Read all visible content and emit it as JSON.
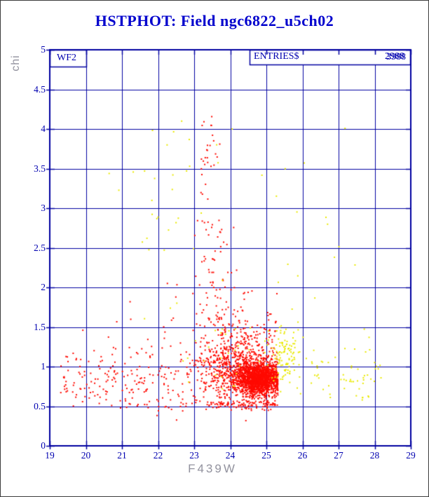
{
  "plot": {
    "wf_label": "WF2",
    "entries_label": "ENTRIES$",
    "entries_values": [
      "2988",
      "3988"
    ]
  },
  "chart_data": {
    "type": "scatter",
    "title": "HSTPHOT: Field ngc6822_u5ch02",
    "xlabel": "F439W",
    "ylabel": "chi",
    "xlim": [
      19,
      29
    ],
    "ylim": [
      0,
      5
    ],
    "x_ticks": [
      19,
      20,
      21,
      22,
      23,
      24,
      25,
      26,
      27,
      28,
      29
    ],
    "y_ticks": [
      0,
      0.5,
      1,
      1.5,
      2,
      2.5,
      3,
      3.5,
      4,
      4.5,
      5
    ],
    "grid": true,
    "legend": "none",
    "marker": "dot-2px",
    "colors": {
      "grid": "#0000a0",
      "axis": "#0000a0",
      "tick_text": "#0000b0",
      "title": "#0000cd",
      "axis_label_text": "#92929e",
      "background": "#ffffff",
      "red_series": "#ff0a00",
      "yellow_series": "#e9e900"
    },
    "series": [
      {
        "name": "red-points",
        "color": "#ff0a00",
        "clusters": [
          {
            "n": 1500,
            "x": {
              "dist": "normal",
              "mu": 24.78,
              "sd": 0.3,
              "fold_max": 25.32
            },
            "y": {
              "dist": "normal",
              "mu": 0.84,
              "sd": 0.1
            }
          },
          {
            "n": 650,
            "x": {
              "dist": "normal",
              "mu": 24.35,
              "sd": 0.55,
              "fold_max": 25.32
            },
            "y": {
              "dist": "normal",
              "mu": 0.92,
              "sd": 0.17
            }
          },
          {
            "n": 280,
            "x": {
              "dist": "uniform",
              "min": 19.3,
              "max": 25.3
            },
            "y": {
              "dist": "normal",
              "mu": 0.85,
              "sd": 0.22
            }
          },
          {
            "n": 110,
            "x": {
              "dist": "uniform",
              "min": 23.4,
              "max": 25.25
            },
            "y": {
              "dist": "normal",
              "mu": 0.52,
              "sd": 0.035
            }
          },
          {
            "n": 18,
            "x": {
              "dist": "uniform",
              "min": 20.8,
              "max": 23.4
            },
            "y": {
              "dist": "normal",
              "mu": 0.52,
              "sd": 0.03
            }
          },
          {
            "n": 130,
            "x": {
              "dist": "normal",
              "mu": 24.55,
              "sd": 0.45,
              "fold_max": 25.32
            },
            "y": {
              "dist": "normal",
              "mu": 1.32,
              "sd": 0.16
            }
          },
          {
            "n": 120,
            "x": {
              "dist": "normal",
              "mu": 23.65,
              "sd": 0.28
            },
            "y": {
              "dist": "pow",
              "min": 1.05,
              "max": 2.9,
              "pow": 2
            }
          },
          {
            "n": 40,
            "x": {
              "dist": "normal",
              "mu": 23.38,
              "sd": 0.14
            },
            "y": {
              "dist": "uniform",
              "min": 2.2,
              "max": 4.2
            }
          },
          {
            "n": 50,
            "x": {
              "dist": "normal",
              "mu": 23.9,
              "sd": 0.5
            },
            "y": {
              "dist": "uniform",
              "min": 1.2,
              "max": 2.0
            }
          },
          {
            "n": 15,
            "x": {
              "dist": "uniform",
              "min": 20.5,
              "max": 23.2
            },
            "y": {
              "dist": "uniform",
              "min": 1.1,
              "max": 2.3
            }
          }
        ]
      },
      {
        "name": "yellow-points",
        "color": "#e9e900",
        "clusters": [
          {
            "n": 90,
            "x": {
              "dist": "normal",
              "mu": 25.55,
              "sd": 0.22
            },
            "y": {
              "dist": "normal",
              "mu": 1.18,
              "sd": 0.18
            }
          },
          {
            "n": 60,
            "x": {
              "dist": "uniform",
              "min": 24.9,
              "max": 28.2
            },
            "y": {
              "dist": "normal",
              "mu": 1.0,
              "sd": 0.22
            }
          },
          {
            "n": 40,
            "x": {
              "dist": "uniform",
              "min": 21.5,
              "max": 27.6
            },
            "y": {
              "dist": "uniform",
              "min": 1.4,
              "max": 4.1
            }
          },
          {
            "n": 12,
            "x": {
              "dist": "uniform",
              "min": 20.6,
              "max": 23.2
            },
            "y": {
              "dist": "uniform",
              "min": 2.4,
              "max": 3.8
            }
          },
          {
            "n": 22,
            "x": {
              "dist": "uniform",
              "min": 25.3,
              "max": 28.0
            },
            "y": {
              "dist": "uniform",
              "min": 0.55,
              "max": 0.9
            }
          },
          {
            "n": 25,
            "x": {
              "dist": "uniform",
              "min": 22.5,
              "max": 25.2
            },
            "y": {
              "dist": "uniform",
              "min": 0.6,
              "max": 1.5
            }
          }
        ]
      }
    ]
  }
}
